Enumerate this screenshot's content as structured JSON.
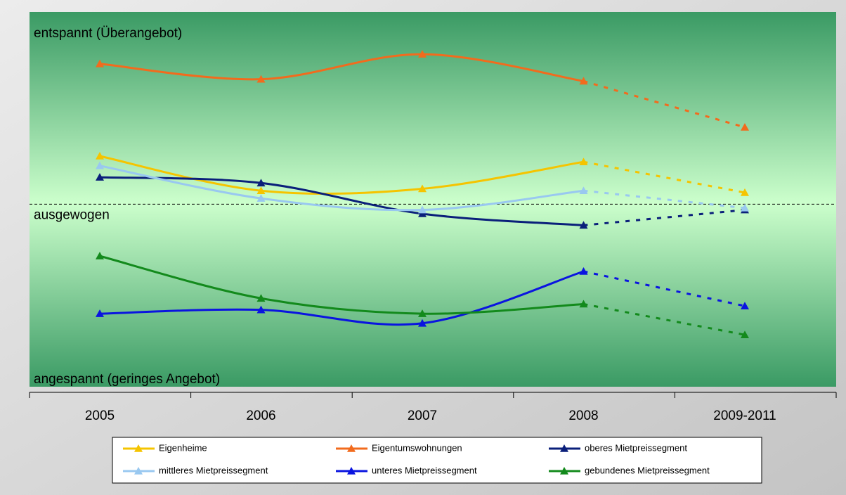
{
  "chart_data": {
    "type": "line",
    "categories": [
      "2005",
      "2006",
      "2007",
      "2008",
      "2009-2011"
    ],
    "series": [
      {
        "name": "Eigenheime",
        "color": "#f5c400",
        "values": [
          25,
          7,
          8,
          22,
          6
        ]
      },
      {
        "name": "Eigentumswohnungen",
        "color": "#f26b1d",
        "values": [
          73,
          65,
          78,
          64,
          40
        ]
      },
      {
        "name": "oberes Mietpreissegment",
        "color": "#0a1f7a",
        "values": [
          14,
          11,
          -5,
          -11,
          -3
        ]
      },
      {
        "name": "mittleres Mietpreissegment",
        "color": "#99c8f0",
        "values": [
          20,
          3,
          -3,
          7,
          -2
        ]
      },
      {
        "name": "unteres Mietpreissegment",
        "color": "#0a14e0",
        "values": [
          -57,
          -55,
          -62,
          -35,
          -53
        ]
      },
      {
        "name": "gebundenes Mietpreissegment",
        "color": "#138a1c",
        "values": [
          -27,
          -49,
          -57,
          -52,
          -68
        ]
      }
    ],
    "ylim": [
      -95,
      100
    ],
    "dashed_last_segment": true,
    "reference_line": {
      "value": 0,
      "label": "ausgewogen"
    },
    "annotations": [
      "entspannt (Überangebot)",
      "angespannt (geringes Angebot)"
    ]
  }
}
